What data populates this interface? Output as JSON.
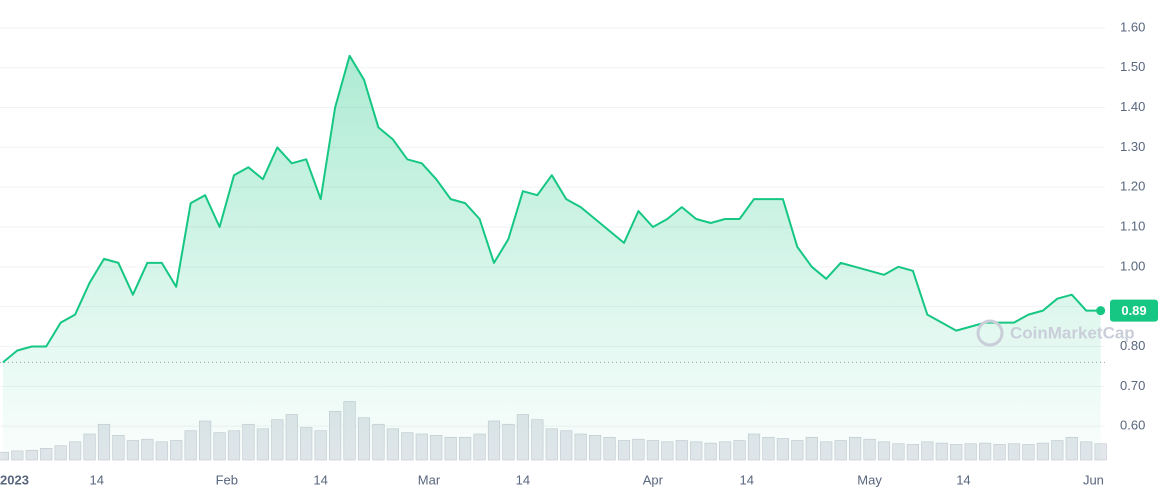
{
  "chart_data": {
    "type": "area",
    "x": [
      0,
      2,
      4,
      6,
      8,
      10,
      12,
      14,
      16,
      18,
      20,
      22,
      24,
      26,
      28,
      30,
      32,
      34,
      36,
      38,
      40,
      42,
      44,
      46,
      48,
      50,
      52,
      54,
      56,
      58,
      60,
      62,
      64,
      66,
      68,
      70,
      72,
      74,
      76,
      78,
      80,
      82,
      84,
      86,
      88,
      90,
      92,
      94,
      96,
      98,
      100,
      102,
      104,
      106,
      108,
      110,
      112,
      114,
      116,
      118,
      120,
      122,
      124,
      126,
      128,
      130,
      132,
      134,
      136,
      138,
      140,
      142,
      144,
      146,
      148,
      150,
      152
    ],
    "values": [
      0.76,
      0.79,
      0.8,
      0.8,
      0.86,
      0.88,
      0.96,
      1.02,
      1.01,
      0.93,
      1.01,
      1.01,
      0.95,
      1.16,
      1.18,
      1.1,
      1.23,
      1.25,
      1.22,
      1.3,
      1.26,
      1.27,
      1.17,
      1.4,
      1.53,
      1.47,
      1.35,
      1.32,
      1.27,
      1.26,
      1.22,
      1.17,
      1.16,
      1.12,
      1.01,
      1.07,
      1.19,
      1.18,
      1.23,
      1.17,
      1.15,
      1.12,
      1.09,
      1.06,
      1.14,
      1.1,
      1.12,
      1.15,
      1.12,
      1.11,
      1.12,
      1.12,
      1.17,
      1.17,
      1.17,
      1.05,
      1.0,
      0.97,
      1.01,
      1.0,
      0.99,
      0.98,
      1.0,
      0.99,
      0.88,
      0.86,
      0.84,
      0.85,
      0.86,
      0.86,
      0.86,
      0.88,
      0.89,
      0.92,
      0.93,
      0.89,
      0.89
    ],
    "volume": [
      12,
      14,
      15,
      18,
      22,
      28,
      40,
      55,
      38,
      30,
      32,
      28,
      30,
      45,
      60,
      42,
      45,
      55,
      48,
      62,
      70,
      50,
      45,
      75,
      90,
      65,
      55,
      48,
      42,
      40,
      38,
      35,
      35,
      40,
      60,
      55,
      70,
      62,
      48,
      45,
      40,
      38,
      35,
      30,
      32,
      30,
      28,
      30,
      28,
      26,
      28,
      30,
      40,
      35,
      33,
      30,
      35,
      28,
      30,
      35,
      32,
      28,
      25,
      24,
      28,
      26,
      24,
      25,
      26,
      24,
      25,
      24,
      26,
      30,
      35,
      28,
      25
    ],
    "volume_lim": [
      0,
      100
    ],
    "color": "#16c784",
    "xlim": [
      -0.4,
      152.6
    ],
    "xticks": [
      {
        "value": 0,
        "label": "2023"
      },
      {
        "value": 13,
        "label": "14"
      },
      {
        "value": 31,
        "label": "Feb"
      },
      {
        "value": 44,
        "label": "14"
      },
      {
        "value": 59,
        "label": "Mar"
      },
      {
        "value": 72,
        "label": "14"
      },
      {
        "value": 90,
        "label": "Apr"
      },
      {
        "value": 103,
        "label": "14"
      },
      {
        "value": 120,
        "label": "May"
      },
      {
        "value": 133,
        "label": "14"
      },
      {
        "value": 151,
        "label": "Jun"
      }
    ],
    "ylim": [
      0.515,
      1.67
    ],
    "yticks": [
      {
        "value": 0.6,
        "label": "0.60"
      },
      {
        "value": 0.7,
        "label": "0.70"
      },
      {
        "value": 0.8,
        "label": "0.80"
      },
      {
        "value": 0.9,
        "label": "0.90"
      },
      {
        "value": 1.0,
        "label": "1.00"
      },
      {
        "value": 1.1,
        "label": "1.10"
      },
      {
        "value": 1.2,
        "label": "1.20"
      },
      {
        "value": 1.3,
        "label": "1.30"
      },
      {
        "value": 1.4,
        "label": "1.40"
      },
      {
        "value": 1.5,
        "label": "1.50"
      },
      {
        "value": 1.6,
        "label": "1.60"
      }
    ],
    "current_price_label": "0.89",
    "watermark": "CoinMarketCap",
    "grid": true
  }
}
